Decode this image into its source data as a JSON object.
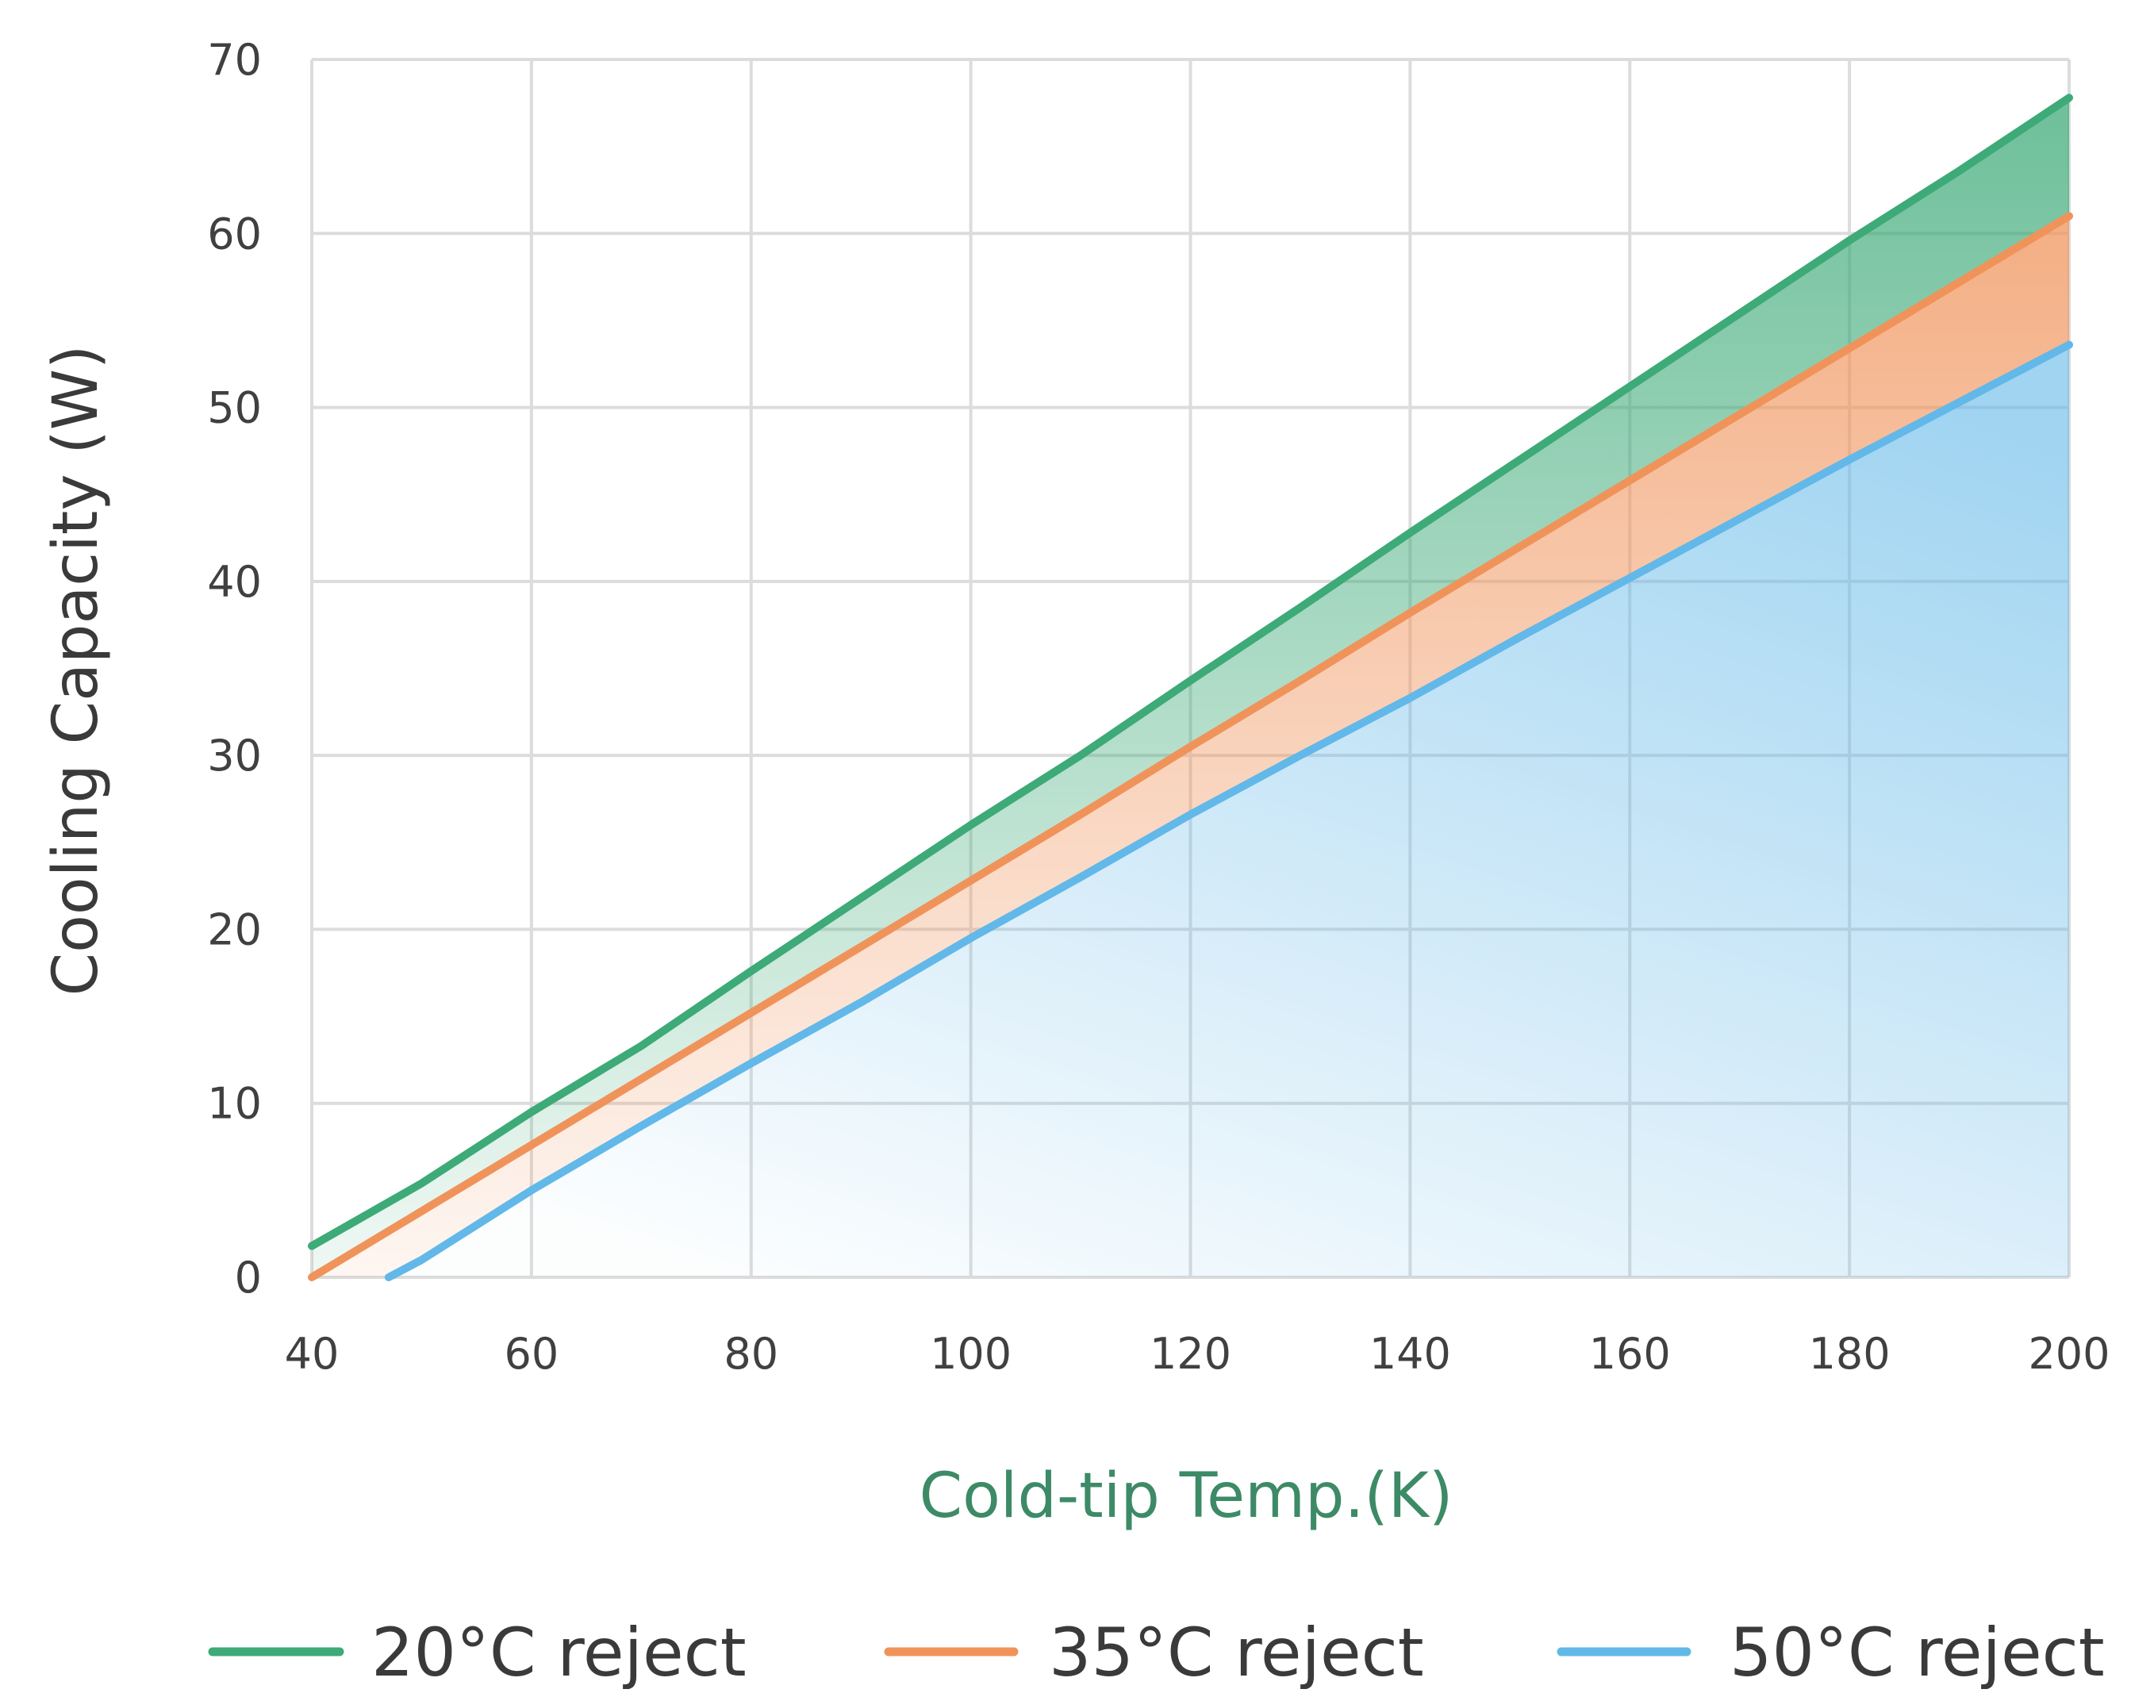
{
  "chart_data": {
    "type": "area",
    "xlabel": "Cold-tip Temp.(K)",
    "ylabel": "Cooling Capacity (W)",
    "xlim": [
      40,
      200
    ],
    "ylim": [
      0,
      70
    ],
    "xticks": [
      40,
      60,
      80,
      100,
      120,
      140,
      160,
      180,
      200
    ],
    "yticks": [
      0,
      10,
      20,
      30,
      40,
      50,
      60,
      70
    ],
    "grid": true,
    "legend_position": "bottom",
    "x": [
      40,
      50,
      60,
      70,
      80,
      90,
      100,
      110,
      120,
      130,
      140,
      150,
      160,
      170,
      180,
      190,
      200
    ],
    "series": [
      {
        "name": "20°C reject",
        "color": "#3daa78",
        "values": [
          1.8,
          5.4,
          9.5,
          13.3,
          17.6,
          21.8,
          26.0,
          30.0,
          34.3,
          38.5,
          42.8,
          47.0,
          51.2,
          55.4,
          59.6,
          63.6,
          67.8
        ]
      },
      {
        "name": "35°C reject",
        "color": "#f0935a",
        "values": [
          0.0,
          3.8,
          7.6,
          11.4,
          15.2,
          19.0,
          22.8,
          26.6,
          30.5,
          34.3,
          38.2,
          42.0,
          45.8,
          49.6,
          53.4,
          57.2,
          61.0
        ]
      },
      {
        "name": "50°C reject",
        "color": "#62b8e8",
        "values": [
          null,
          1.0,
          5.0,
          8.7,
          12.3,
          15.8,
          19.5,
          23.0,
          26.6,
          30.0,
          33.3,
          36.8,
          40.2,
          43.6,
          47.0,
          50.3,
          53.6
        ],
        "start": {
          "x": 47,
          "y": 0
        }
      }
    ]
  }
}
